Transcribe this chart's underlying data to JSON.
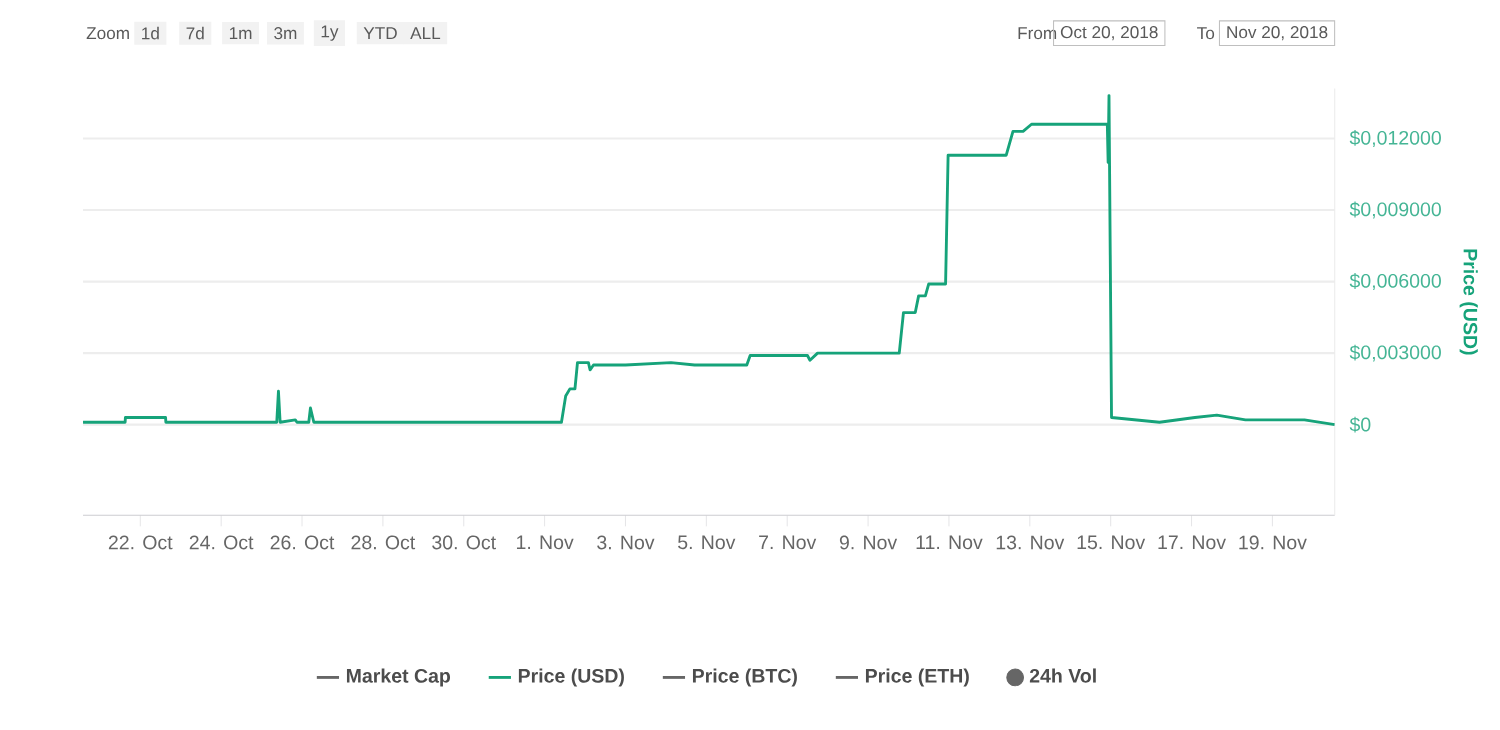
{
  "chart_data": {
    "type": "line",
    "ylabel": "Price (USD)",
    "xlim": [
      "2018-10-20T14:00",
      "2018-11-20T13:00"
    ],
    "ylim": [
      -0.0038,
      0.0141
    ],
    "xticks": [
      {
        "value": "2018-10-22",
        "label": "22. Oct"
      },
      {
        "value": "2018-10-24",
        "label": "24. Oct"
      },
      {
        "value": "2018-10-26",
        "label": "26. Oct"
      },
      {
        "value": "2018-10-28",
        "label": "28. Oct"
      },
      {
        "value": "2018-10-30",
        "label": "30. Oct"
      },
      {
        "value": "2018-11-01",
        "label": "1. Nov"
      },
      {
        "value": "2018-11-03",
        "label": "3. Nov"
      },
      {
        "value": "2018-11-05",
        "label": "5. Nov"
      },
      {
        "value": "2018-11-07",
        "label": "7. Nov"
      },
      {
        "value": "2018-11-09",
        "label": "9. Nov"
      },
      {
        "value": "2018-11-11",
        "label": "11. Nov"
      },
      {
        "value": "2018-11-13",
        "label": "13. Nov"
      },
      {
        "value": "2018-11-15",
        "label": "15. Nov"
      },
      {
        "value": "2018-11-17",
        "label": "17. Nov"
      },
      {
        "value": "2018-11-19",
        "label": "19. Nov"
      }
    ],
    "yticks": [
      {
        "value": 0,
        "label": "$0"
      },
      {
        "value": 0.003,
        "label": "$0,003000"
      },
      {
        "value": 0.006,
        "label": "$0,006000"
      },
      {
        "value": 0.009,
        "label": "$0,009000"
      },
      {
        "value": 0.012,
        "label": "$0,012000"
      }
    ],
    "grid": "y",
    "legend": "bottom",
    "marker": "none",
    "line_style": "solid",
    "annotations": [
      "Zoom",
      "1d",
      "7d",
      "1m",
      "3m",
      "1y",
      "YTD",
      "ALL",
      "From",
      "Oct 20, 2018",
      "To",
      "Nov 20, 2018"
    ],
    "series": [
      {
        "name": "Market Cap",
        "color": "#666666"
      },
      {
        "name": "Price (USD)",
        "color": "#16a37a",
        "x": [
          "2018-10-20T14:00",
          "2018-10-21T15:00",
          "2018-10-21T15:10",
          "2018-10-22T15:00",
          "2018-10-22T15:10",
          "2018-10-25T09:00",
          "2018-10-25T10:00",
          "2018-10-25T11:00",
          "2018-10-25T20:00",
          "2018-10-25T21:00",
          "2018-10-26T04:00",
          "2018-10-26T05:00",
          "2018-10-26T07:00",
          "2018-11-01T10:00",
          "2018-11-01T12:30",
          "2018-11-01T15:00",
          "2018-11-01T18:00",
          "2018-11-01T19:30",
          "2018-11-02T02:00",
          "2018-11-02T03:00",
          "2018-11-02T05:00",
          "2018-11-03T00:00",
          "2018-11-04T03:00",
          "2018-11-04T17:00",
          "2018-11-06T00:00",
          "2018-11-06T02:00",
          "2018-11-07T12:00",
          "2018-11-07T13:30",
          "2018-11-07T18:00",
          "2018-11-09T18:30",
          "2018-11-09T21:00",
          "2018-11-10T04:00",
          "2018-11-10T06:00",
          "2018-11-10T10:00",
          "2018-11-10T12:00",
          "2018-11-10T22:00",
          "2018-11-10T23:30",
          "2018-11-12T10:00",
          "2018-11-12T14:00",
          "2018-11-12T20:00",
          "2018-11-13T01:00",
          "2018-11-14T22:00",
          "2018-11-14T22:30",
          "2018-11-14T23:00",
          "2018-11-15T00:30",
          "2018-11-16T05:00",
          "2018-11-17T02:00",
          "2018-11-17T15:00",
          "2018-11-18T08:00",
          "2018-11-19T19:00",
          "2018-11-20T13:00"
        ],
        "values": [
          0.0001,
          0.0001,
          0.0003,
          0.0003,
          0.0001,
          0.0001,
          0.0014,
          0.0001,
          0.0002,
          0.0001,
          0.0001,
          0.0007,
          0.0001,
          0.0001,
          0.0012,
          0.0015,
          0.0015,
          0.0026,
          0.0026,
          0.0023,
          0.0025,
          0.0025,
          0.0026,
          0.0025,
          0.0025,
          0.0029,
          0.0029,
          0.0027,
          0.003,
          0.003,
          0.0047,
          0.0047,
          0.0054,
          0.0054,
          0.0059,
          0.0059,
          0.0113,
          0.0113,
          0.0123,
          0.0123,
          0.0126,
          0.0126,
          0.011,
          0.0138,
          0.0003,
          0.0001,
          0.0003,
          0.0004,
          0.0002,
          0.0002,
          0.0
        ]
      },
      {
        "name": "Price (BTC)",
        "color": "#666666"
      },
      {
        "name": "Price (ETH)",
        "color": "#666666"
      },
      {
        "name": "24h Vol",
        "color": "#666666",
        "marker": "circle"
      }
    ]
  }
}
